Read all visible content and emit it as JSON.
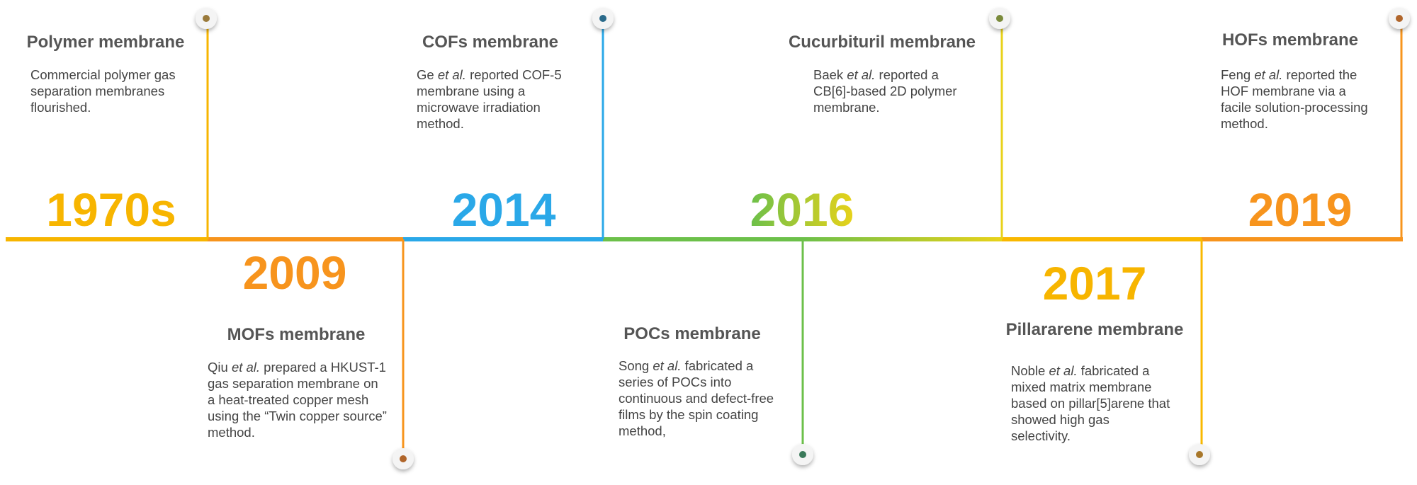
{
  "years": [
    "1970s",
    "2009",
    "2014",
    "2016",
    "2017",
    "2019"
  ],
  "events": [
    {
      "title": "Polymer membrane",
      "description": [
        "Commercial polymer gas separation membranes flourished."
      ]
    },
    {
      "title": "MOFs membrane",
      "description": [
        "Qiu ",
        "et al.",
        " prepared a HKUST-1 gas separation membrane on a heat-treated copper mesh using the “Twin copper source” method."
      ]
    },
    {
      "title": "COFs membrane",
      "description": [
        "Ge ",
        "et al.",
        " reported  COF-5 membrane using a microwave irradiation method."
      ]
    },
    {
      "title": "POCs membrane",
      "description": [
        "Song ",
        "et al.",
        " fabricated a series of POCs into continuous and defect-free films by the spin coating method,"
      ]
    },
    {
      "title": "Cucurbituril membrane",
      "description": [
        "Baek ",
        "et al.",
        " reported a CB[6]-based 2D polymer membrane."
      ]
    },
    {
      "title": "Pillararene membrane",
      "description": [
        "Noble ",
        "et al.",
        " fabricated a mixed matrix membrane based on pillar[5]arene that showed high gas selectivity."
      ]
    },
    {
      "title": "HOFs membrane",
      "description": [
        "Feng ",
        "et al.",
        " reported the HOF membrane via a facile solution-processing method."
      ]
    }
  ]
}
